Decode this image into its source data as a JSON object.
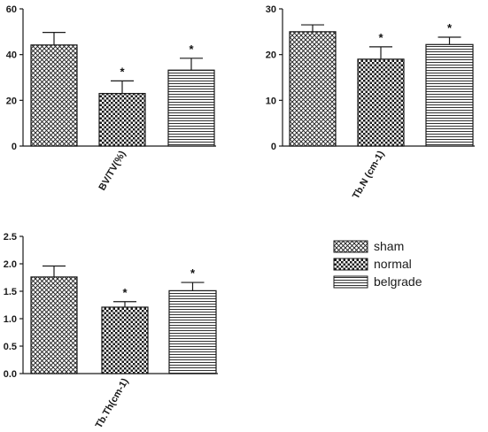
{
  "chart_data": [
    {
      "type": "bar",
      "xlabel": "BV/TV(%)",
      "ylim": [
        0,
        60
      ],
      "yticks": [
        "0",
        "20",
        "40",
        "60"
      ],
      "categories": [
        "sham",
        "normal",
        "belgrade"
      ],
      "values": [
        44.2,
        23.0,
        33.2
      ],
      "errors": [
        5.5,
        5.5,
        5.2
      ],
      "annotations": [
        "",
        "*",
        "*"
      ]
    },
    {
      "type": "bar",
      "xlabel": "Tb.N (cm-1)",
      "ylim": [
        0,
        30
      ],
      "yticks": [
        "0",
        "10",
        "20",
        "30"
      ],
      "categories": [
        "sham",
        "normal",
        "belgrade"
      ],
      "values": [
        25.0,
        19.0,
        22.2
      ],
      "errors": [
        1.5,
        2.7,
        1.6
      ],
      "annotations": [
        "",
        "*",
        "*"
      ]
    },
    {
      "type": "bar",
      "xlabel": "Tb.Th(cm-1)",
      "ylim": [
        0,
        2.5
      ],
      "yticks": [
        "0.0",
        "0.5",
        "1.0",
        "1.5",
        "2.0",
        "2.5"
      ],
      "categories": [
        "sham",
        "normal",
        "belgrade"
      ],
      "values": [
        1.76,
        1.21,
        1.51
      ],
      "errors": [
        0.2,
        0.1,
        0.15
      ],
      "annotations": [
        "",
        "*",
        "*"
      ]
    }
  ],
  "legend": {
    "placement": "right",
    "items": [
      {
        "label": "sham",
        "pattern": "diamond-hatch"
      },
      {
        "label": "normal",
        "pattern": "checkerboard"
      },
      {
        "label": "belgrade",
        "pattern": "horizontal-lines"
      }
    ]
  },
  "colors": {
    "ink": "#1a1a1a",
    "background": "#ffffff"
  }
}
